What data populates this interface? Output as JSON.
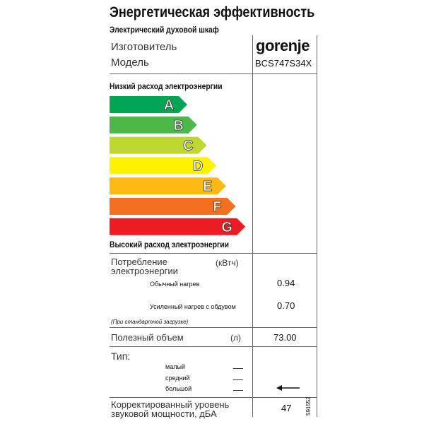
{
  "header": {
    "title": "Энергетическая эффективность",
    "subtitle": "Электрический духовой шкаф"
  },
  "product": {
    "manufacturer_label": "Изготовитель",
    "manufacturer": "gorenje",
    "model_label": "Модель",
    "model": "BCS747S34X"
  },
  "scale": {
    "low_label": "Низкий расход электроэнергии",
    "high_label": "Высокий расход электроэнергии",
    "classes": [
      {
        "letter": "A",
        "color": "#00a651"
      },
      {
        "letter": "B",
        "color": "#4cb848"
      },
      {
        "letter": "C",
        "color": "#bfd730"
      },
      {
        "letter": "D",
        "color": "#fff200"
      },
      {
        "letter": "E",
        "color": "#fdb913"
      },
      {
        "letter": "F",
        "color": "#f37021"
      },
      {
        "letter": "G",
        "color": "#ed1c24"
      }
    ]
  },
  "consumption": {
    "label": "Потребление электроэнергии",
    "unit": "(кВтч)",
    "rows": [
      {
        "label": "Обычный нагрев",
        "value": "0.94"
      },
      {
        "label": "Усиленный нагрев с обдувом",
        "value": "0.70"
      }
    ],
    "note": "(При стандартной загрузке)"
  },
  "volume": {
    "label": "Полезный объем",
    "unit": "(л)",
    "value": "73.00"
  },
  "type": {
    "label": "Тип:",
    "options": [
      "малый",
      "средний",
      "большой"
    ]
  },
  "noise": {
    "label": "Корректированный уровень звуковой мощности, дБА",
    "value": "47"
  },
  "footer": {
    "code": "591552"
  }
}
